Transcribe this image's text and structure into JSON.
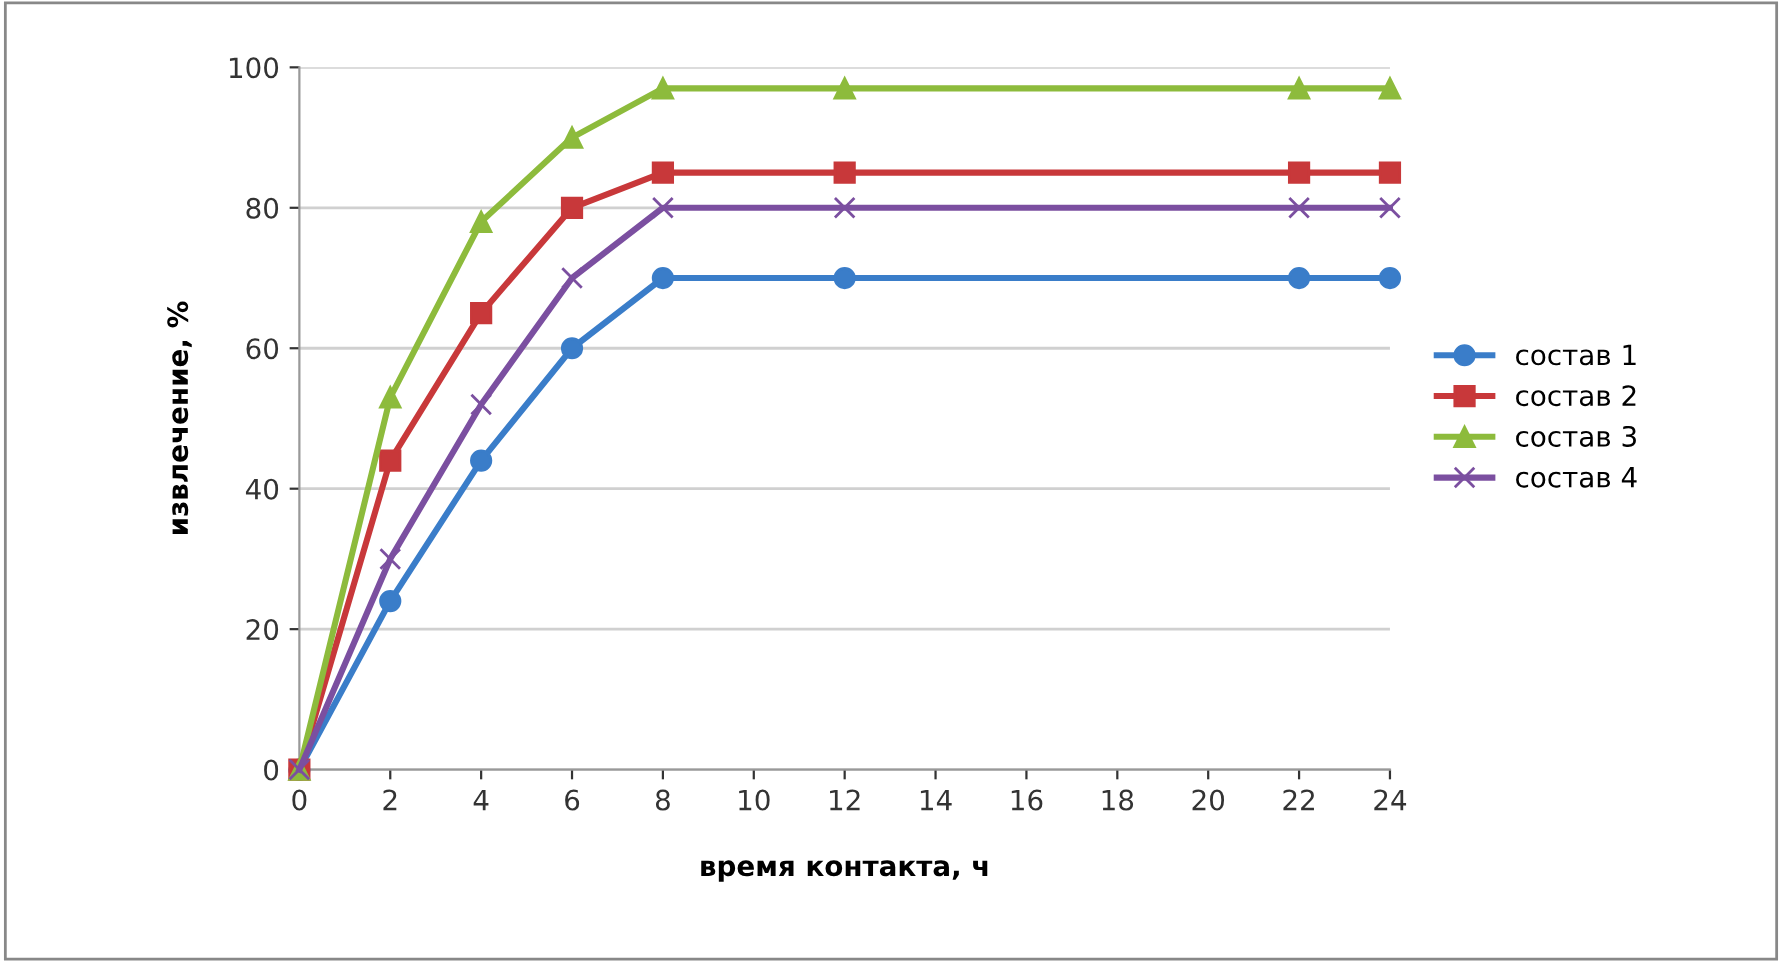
{
  "chart_data": {
    "type": "line",
    "xlabel": "время контакта, ч",
    "ylabel": "извлечение, %",
    "x": [
      0,
      2,
      4,
      6,
      8,
      12,
      22,
      24
    ],
    "series": [
      {
        "name": "состав 1",
        "color": "#3a7dc9",
        "marker": "circle",
        "values": [
          0,
          24,
          44,
          60,
          70,
          70,
          70,
          70
        ]
      },
      {
        "name": "состав 2",
        "color": "#c8383a",
        "marker": "square",
        "values": [
          0,
          44,
          65,
          80,
          85,
          85,
          85,
          85
        ]
      },
      {
        "name": "состав 3",
        "color": "#8dbb3c",
        "marker": "triangle",
        "values": [
          0,
          53,
          78,
          90,
          97,
          97,
          97,
          97
        ]
      },
      {
        "name": "состав 4",
        "color": "#7b4fa0",
        "marker": "cross",
        "values": [
          0,
          30,
          52,
          70,
          80,
          80,
          80,
          80
        ]
      }
    ],
    "xlim": [
      0,
      24
    ],
    "xticks": [
      0,
      2,
      4,
      6,
      8,
      10,
      12,
      14,
      16,
      18,
      20,
      22,
      24
    ],
    "ylim": [
      0,
      100
    ],
    "yticks": [
      0,
      20,
      40,
      60,
      80,
      100
    ],
    "grid": "y",
    "legend": "right",
    "line_style": "solid"
  }
}
